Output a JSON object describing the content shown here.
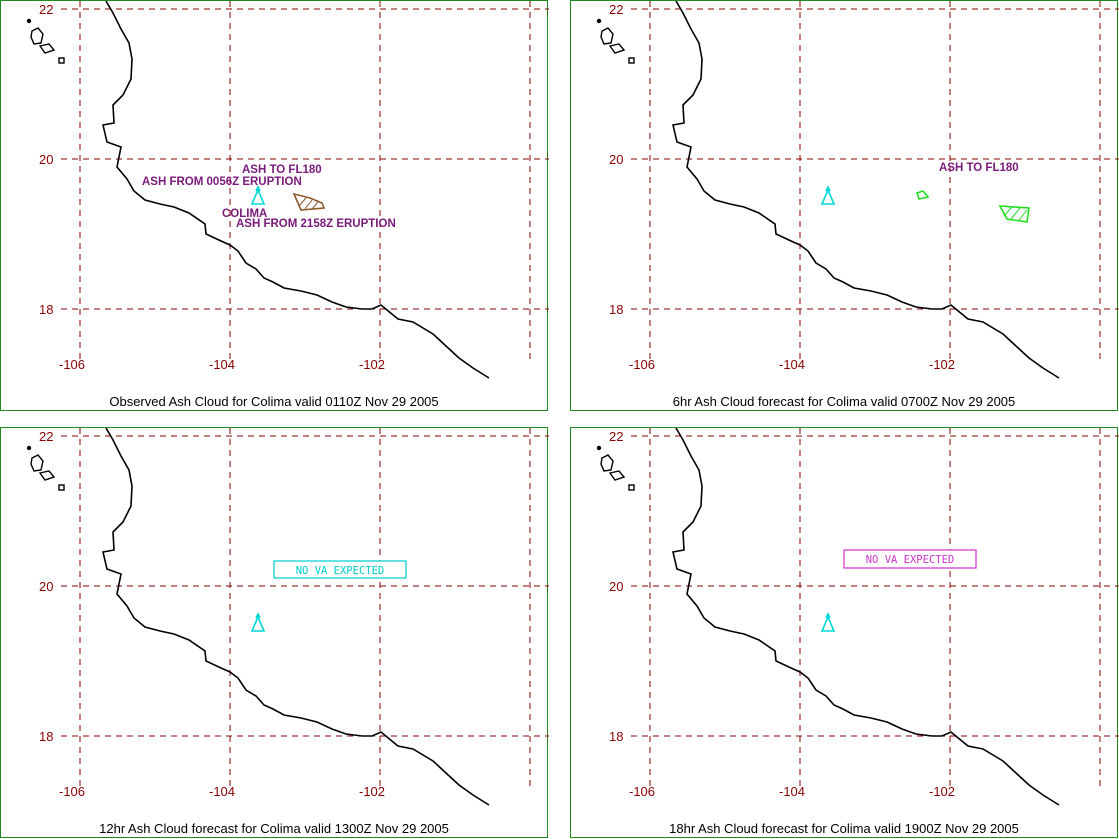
{
  "colors": {
    "frame": "#1f8a1f",
    "grid": "#8b0000",
    "coast": "#000000",
    "volcano": "#00d8d8",
    "label": "#7a1a7a",
    "ash_observed": "#8b5a2b",
    "ash_forecast": "#22dd22",
    "nova_cyan": "#00cccc",
    "nova_magenta": "#cc33cc"
  },
  "axes": {
    "lon_ticks": [
      "-106",
      "-104",
      "-102"
    ],
    "lat_ticks": [
      "22",
      "20",
      "18"
    ]
  },
  "panels": [
    {
      "caption": "Observed Ash Cloud for Colima valid 0110Z Nov 29 2005",
      "volcano_name": "COLIMA",
      "labels": [
        "ASH TO FL180",
        "ASH FROM 0056Z ERUPTION",
        "ASH FROM 2158Z ERUPTION"
      ]
    },
    {
      "caption": "6hr Ash Cloud forecast for Colima valid 0700Z Nov 29 2005",
      "labels": [
        "ASH TO FL180"
      ]
    },
    {
      "caption": "12hr Ash Cloud forecast for Colima valid 1300Z Nov 29 2005",
      "notice": "NO VA EXPECTED"
    },
    {
      "caption": "18hr Ash Cloud forecast for Colima valid 1900Z Nov 29 2005",
      "notice": "NO VA EXPECTED"
    }
  ]
}
